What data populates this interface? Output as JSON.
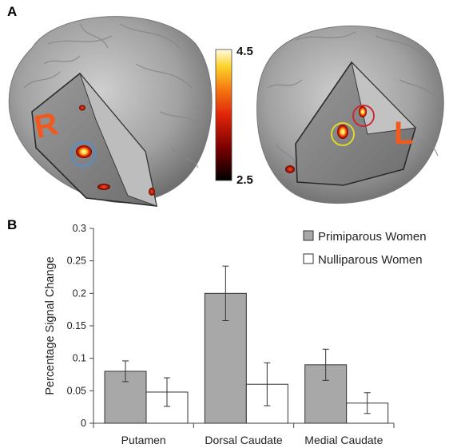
{
  "panels": {
    "a_label": "A",
    "b_label": "B"
  },
  "brain_images": {
    "left_view_label": "R",
    "right_view_label": "L",
    "colorbar": {
      "max_label": "4.5",
      "min_label": "2.5",
      "colors": [
        "#000000",
        "#7a0000",
        "#e0240a",
        "#f57a10",
        "#fbd32a",
        "#fffbe0"
      ]
    },
    "roi_circle_colors": {
      "blue": "#4f8fd6",
      "red": "#d0202a",
      "yellow": "#e8e020"
    }
  },
  "chart_data": {
    "type": "bar",
    "categories": [
      "Putamen",
      "Dorsal Caudate",
      "Medial Caudate"
    ],
    "series": [
      {
        "name": "Primiparous Women",
        "values": [
          0.08,
          0.2,
          0.09
        ],
        "errors": [
          0.016,
          0.042,
          0.024
        ],
        "color": "#a8a8a8"
      },
      {
        "name": "Nulliparous Women",
        "values": [
          0.048,
          0.06,
          0.031
        ],
        "errors": [
          0.022,
          0.033,
          0.016
        ],
        "color": "#ffffff"
      }
    ],
    "ylabel": "Percentage Signal Change",
    "ylim": [
      0,
      0.3
    ],
    "yticks": [
      "0",
      "0.05",
      "0.1",
      "0.15",
      "0.2",
      "0.25",
      "0.3"
    ],
    "legend_position": "top-right",
    "grid": false
  }
}
